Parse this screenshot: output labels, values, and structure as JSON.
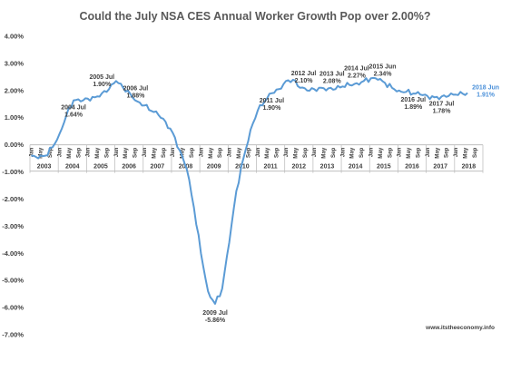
{
  "chart_data": {
    "type": "line",
    "title": "Could the July NSA CES Annual Worker Growth Pop over 2.00%?",
    "xlabel": "",
    "ylabel": "",
    "ylim": [
      -7.0,
      4.0
    ],
    "y_ticks": [
      "4.00%",
      "3.00%",
      "2.00%",
      "1.00%",
      "0.00%",
      "-1.00%",
      "-2.00%",
      "-3.00%",
      "-4.00%",
      "-5.00%",
      "-6.00%",
      "-7.00%"
    ],
    "x_start": "2003 Jan",
    "x_end": "2018 Jun",
    "month_tick_labels": [
      "Jan",
      "May",
      "Sep"
    ],
    "year_labels": [
      "2003",
      "2004",
      "2005",
      "2006",
      "2007",
      "2008",
      "2009",
      "2010",
      "2011",
      "2012",
      "2013",
      "2014",
      "2015",
      "2016",
      "2017",
      "2018"
    ],
    "line_color": "#5b9bd5",
    "grid": false,
    "series": [
      {
        "anchors": [
          [
            "2003-01",
            -0.4
          ],
          [
            "2003-04",
            -0.5
          ],
          [
            "2003-07",
            -0.4
          ],
          [
            "2003-10",
            -0.1
          ],
          [
            "2004-01",
            0.4
          ],
          [
            "2004-04",
            1.1
          ],
          [
            "2004-07",
            1.64
          ],
          [
            "2004-10",
            1.6
          ],
          [
            "2005-01",
            1.7
          ],
          [
            "2005-04",
            1.75
          ],
          [
            "2005-07",
            1.9
          ],
          [
            "2005-10",
            2.05
          ],
          [
            "2006-01",
            2.35
          ],
          [
            "2006-04",
            2.1
          ],
          [
            "2006-07",
            1.88
          ],
          [
            "2006-10",
            1.6
          ],
          [
            "2007-01",
            1.45
          ],
          [
            "2007-04",
            1.25
          ],
          [
            "2007-07",
            1.1
          ],
          [
            "2007-10",
            0.85
          ],
          [
            "2008-01",
            0.45
          ],
          [
            "2008-04",
            -0.2
          ],
          [
            "2008-07",
            -0.9
          ],
          [
            "2008-10",
            -2.3
          ],
          [
            "2009-01",
            -4.0
          ],
          [
            "2009-04",
            -5.4
          ],
          [
            "2009-07",
            -5.86
          ],
          [
            "2009-10",
            -5.3
          ],
          [
            "2010-01",
            -3.6
          ],
          [
            "2010-04",
            -1.7
          ],
          [
            "2010-07",
            -0.5
          ],
          [
            "2010-10",
            0.55
          ],
          [
            "2011-01",
            1.25
          ],
          [
            "2011-04",
            1.6
          ],
          [
            "2011-07",
            1.9
          ],
          [
            "2011-10",
            2.05
          ],
          [
            "2012-01",
            2.35
          ],
          [
            "2012-04",
            2.4
          ],
          [
            "2012-07",
            2.1
          ],
          [
            "2012-10",
            2.0
          ],
          [
            "2013-01",
            2.05
          ],
          [
            "2013-04",
            2.1
          ],
          [
            "2013-07",
            2.08
          ],
          [
            "2013-10",
            2.05
          ],
          [
            "2014-01",
            2.15
          ],
          [
            "2014-04",
            2.2
          ],
          [
            "2014-07",
            2.27
          ],
          [
            "2014-10",
            2.35
          ],
          [
            "2015-01",
            2.45
          ],
          [
            "2015-04",
            2.4
          ],
          [
            "2015-06",
            2.34
          ],
          [
            "2015-10",
            2.1
          ],
          [
            "2016-01",
            2.0
          ],
          [
            "2016-04",
            1.95
          ],
          [
            "2016-07",
            1.89
          ],
          [
            "2016-10",
            1.85
          ],
          [
            "2017-01",
            1.8
          ],
          [
            "2017-04",
            1.75
          ],
          [
            "2017-07",
            1.78
          ],
          [
            "2017-10",
            1.8
          ],
          [
            "2018-01",
            1.85
          ],
          [
            "2018-04",
            1.88
          ],
          [
            "2018-06",
            1.91
          ]
        ]
      }
    ],
    "annotations": [
      {
        "label": "2004 Jul",
        "value": "1.64%",
        "x": "2004-07",
        "y": 1.64,
        "color": "dark"
      },
      {
        "label": "2005 Jul",
        "value": "1.90%",
        "x": "2005-07",
        "y": 1.9,
        "color": "dark"
      },
      {
        "label": "2006 Jul",
        "value": "1.88%",
        "x": "2006-07",
        "y": 1.88,
        "color": "dark"
      },
      {
        "label": "2009 Jul",
        "value": "-5.86%",
        "x": "2009-07",
        "y": -5.86,
        "color": "dark"
      },
      {
        "label": "2011 Jul",
        "value": "1.90%",
        "x": "2011-07",
        "y": 1.9,
        "color": "dark"
      },
      {
        "label": "2012 Jul",
        "value": "2.10%",
        "x": "2012-07",
        "y": 2.1,
        "color": "dark"
      },
      {
        "label": "2013 Jul",
        "value": "2.08%",
        "x": "2013-07",
        "y": 2.08,
        "color": "dark"
      },
      {
        "label": "2014 Jul",
        "value": "2.27%",
        "x": "2014-07",
        "y": 2.27,
        "color": "dark"
      },
      {
        "label": "2015 Jun",
        "value": "2.34%",
        "x": "2015-06",
        "y": 2.34,
        "color": "dark"
      },
      {
        "label": "2016 Jul",
        "value": "1.89%",
        "x": "2016-07",
        "y": 1.89,
        "color": "dark"
      },
      {
        "label": "2017 Jul",
        "value": "1.78%",
        "x": "2017-07",
        "y": 1.78,
        "color": "dark"
      },
      {
        "label": "2018 Jun",
        "value": "1.91%",
        "x": "2018-06",
        "y": 1.91,
        "color": "blue"
      }
    ],
    "source": "www.itstheeconomy.info"
  }
}
